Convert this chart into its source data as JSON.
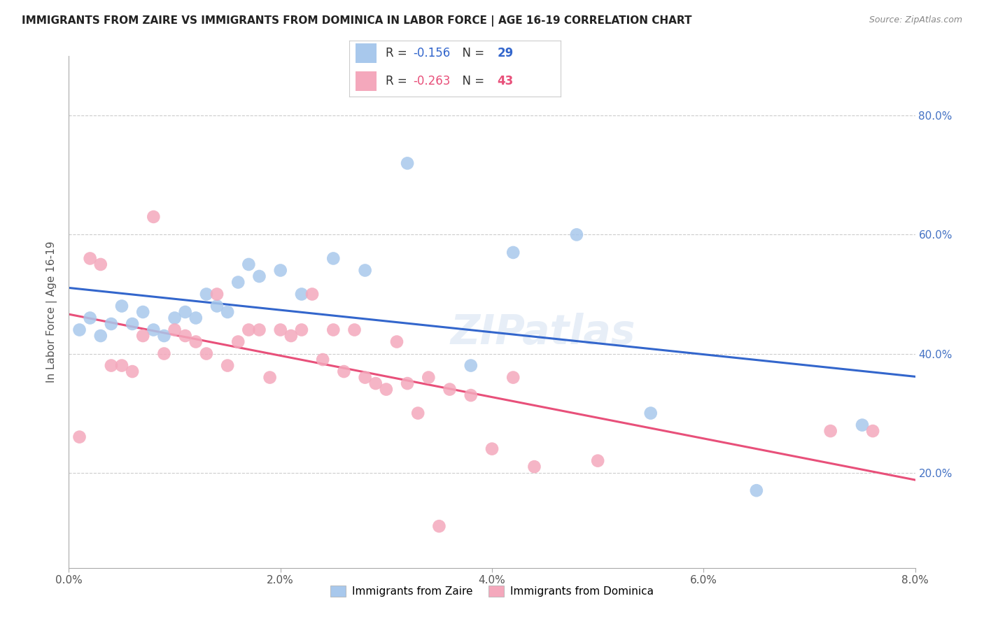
{
  "title": "IMMIGRANTS FROM ZAIRE VS IMMIGRANTS FROM DOMINICA IN LABOR FORCE | AGE 16-19 CORRELATION CHART",
  "source": "Source: ZipAtlas.com",
  "ylabel": "In Labor Force | Age 16-19",
  "y_tick_labels": [
    "20.0%",
    "40.0%",
    "60.0%",
    "80.0%"
  ],
  "y_tick_values": [
    0.2,
    0.4,
    0.6,
    0.8
  ],
  "x_ticks": [
    0.0,
    0.02,
    0.04,
    0.06,
    0.08
  ],
  "x_tick_labels": [
    "0.0%",
    "2.0%",
    "4.0%",
    "6.0%",
    "8.0%"
  ],
  "x_range": [
    0.0,
    0.08
  ],
  "y_range": [
    0.04,
    0.9
  ],
  "zaire_R": "-0.156",
  "zaire_N": "29",
  "dominica_R": "-0.263",
  "dominica_N": "43",
  "zaire_color": "#A8C8EC",
  "dominica_color": "#F4A8BC",
  "zaire_line_color": "#3366CC",
  "dominica_line_color": "#E8507A",
  "watermark": "ZIPatlas",
  "zaire_x": [
    0.001,
    0.002,
    0.003,
    0.004,
    0.005,
    0.006,
    0.007,
    0.008,
    0.009,
    0.01,
    0.011,
    0.012,
    0.013,
    0.014,
    0.015,
    0.016,
    0.017,
    0.018,
    0.02,
    0.022,
    0.025,
    0.028,
    0.032,
    0.038,
    0.042,
    0.048,
    0.055,
    0.065,
    0.075
  ],
  "zaire_y": [
    0.44,
    0.46,
    0.43,
    0.45,
    0.48,
    0.45,
    0.47,
    0.44,
    0.43,
    0.46,
    0.47,
    0.46,
    0.5,
    0.48,
    0.47,
    0.52,
    0.55,
    0.53,
    0.54,
    0.5,
    0.56,
    0.54,
    0.72,
    0.38,
    0.57,
    0.6,
    0.3,
    0.17,
    0.28
  ],
  "dominica_x": [
    0.001,
    0.002,
    0.003,
    0.004,
    0.005,
    0.006,
    0.007,
    0.008,
    0.009,
    0.01,
    0.011,
    0.012,
    0.013,
    0.014,
    0.015,
    0.016,
    0.017,
    0.018,
    0.019,
    0.02,
    0.021,
    0.022,
    0.023,
    0.024,
    0.025,
    0.026,
    0.027,
    0.028,
    0.029,
    0.03,
    0.031,
    0.032,
    0.033,
    0.034,
    0.035,
    0.036,
    0.038,
    0.04,
    0.042,
    0.044,
    0.05,
    0.072,
    0.076
  ],
  "dominica_y": [
    0.26,
    0.56,
    0.55,
    0.38,
    0.38,
    0.37,
    0.43,
    0.63,
    0.4,
    0.44,
    0.43,
    0.42,
    0.4,
    0.5,
    0.38,
    0.42,
    0.44,
    0.44,
    0.36,
    0.44,
    0.43,
    0.44,
    0.5,
    0.39,
    0.44,
    0.37,
    0.44,
    0.36,
    0.35,
    0.34,
    0.42,
    0.35,
    0.3,
    0.36,
    0.11,
    0.34,
    0.33,
    0.24,
    0.36,
    0.21,
    0.22,
    0.27,
    0.27
  ]
}
